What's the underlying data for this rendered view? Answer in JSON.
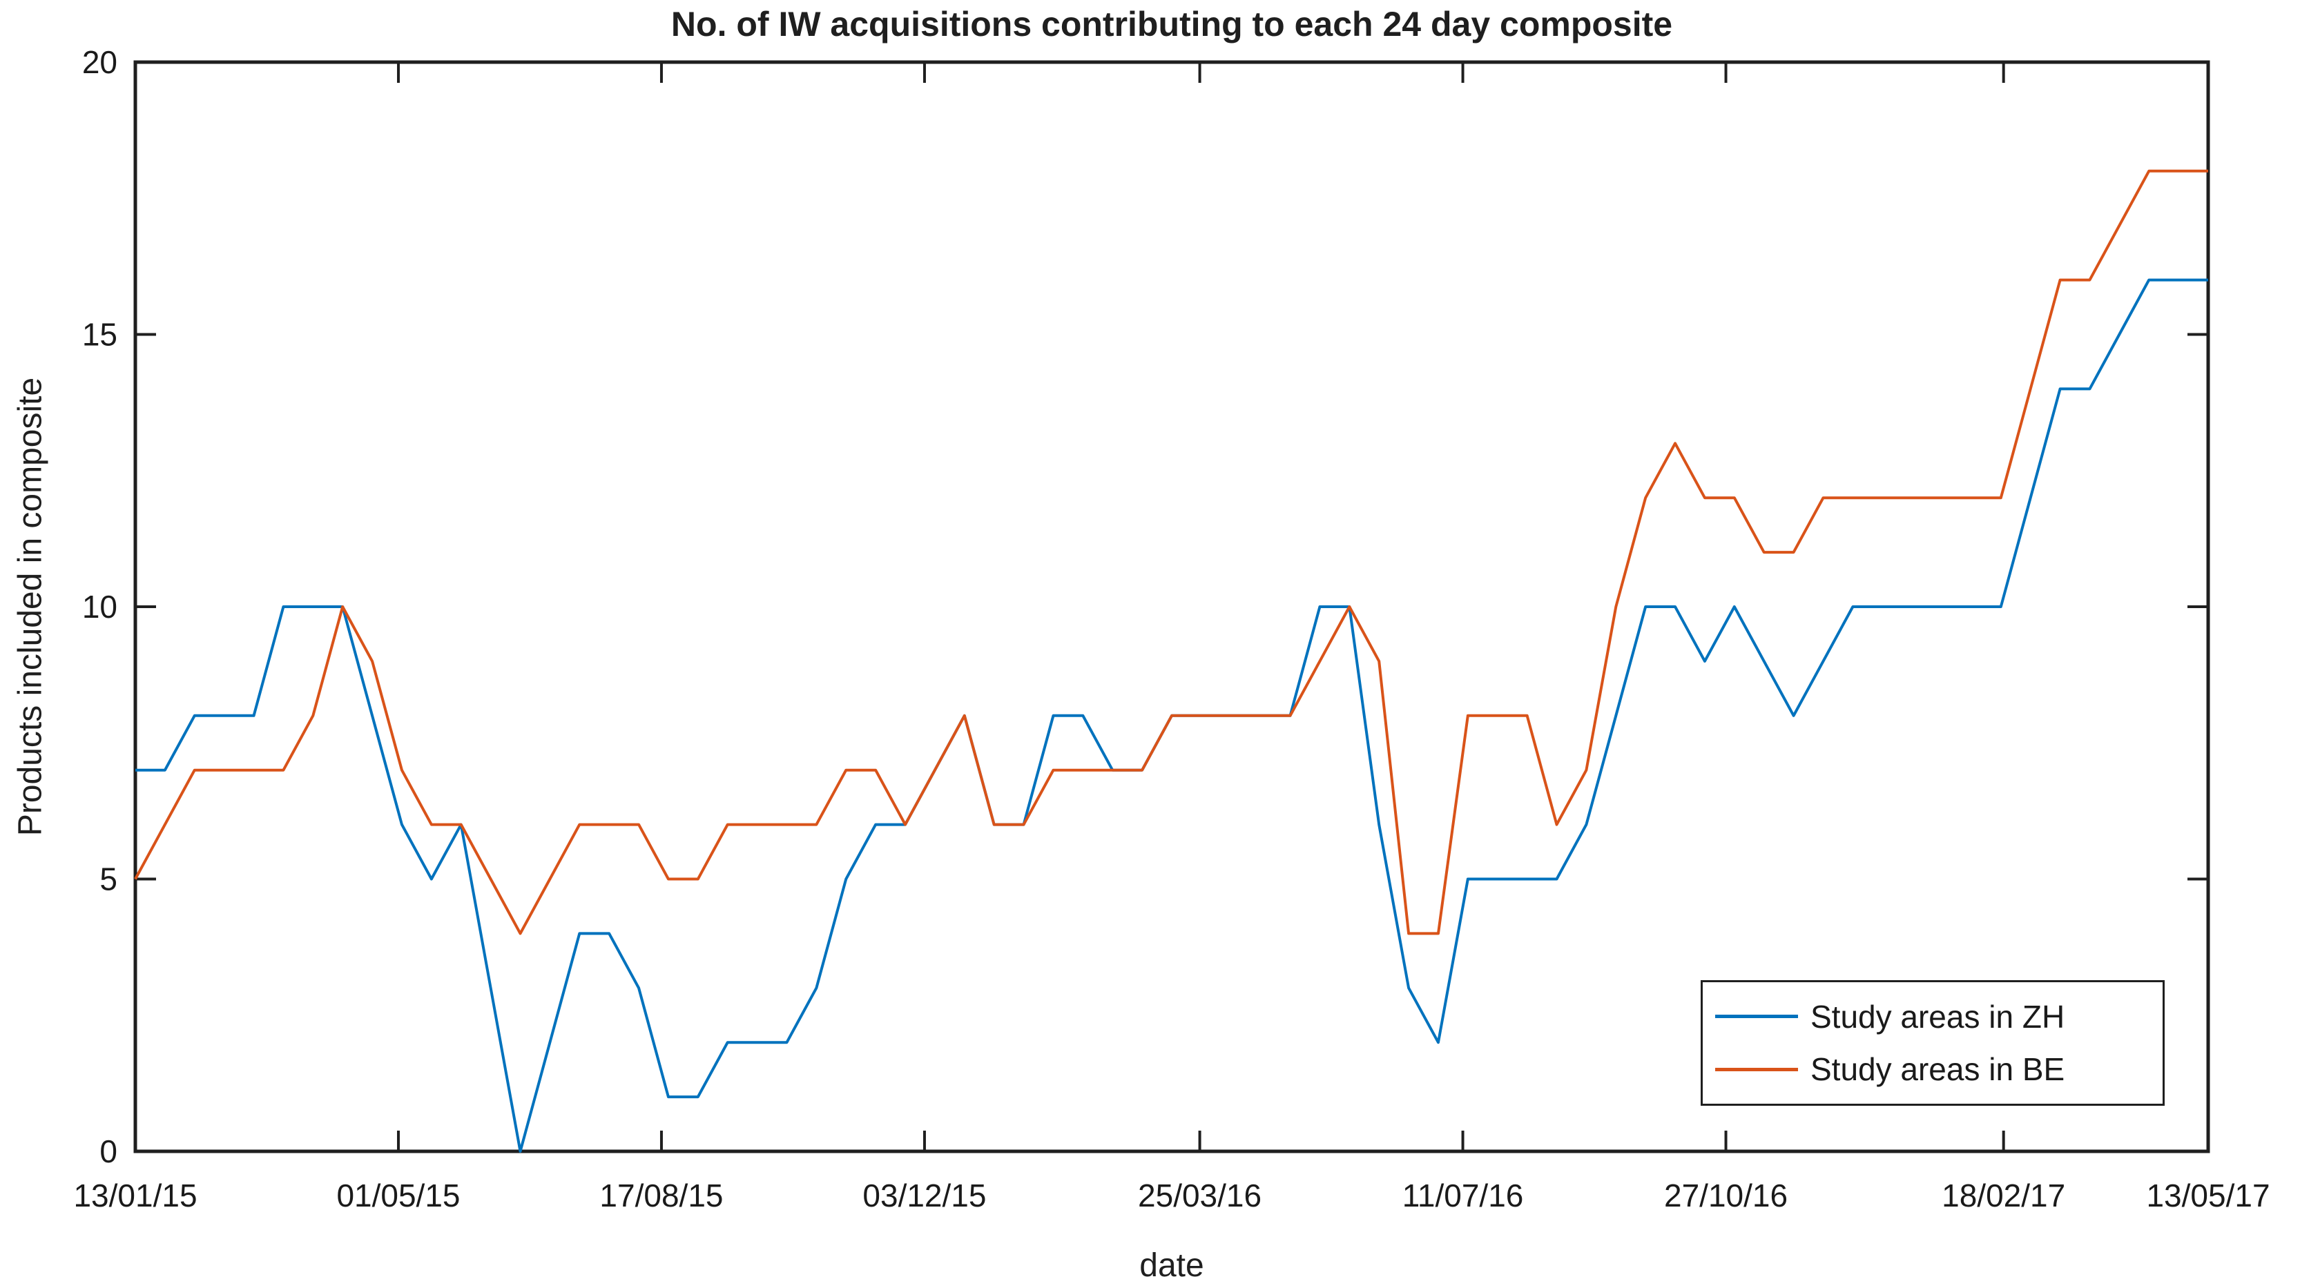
{
  "chart_data": {
    "type": "line",
    "title": "No. of IW acquisitions contributing to each 24 day composite",
    "xlabel": "date",
    "ylabel": "Products included in composite",
    "ylim": [
      0,
      20
    ],
    "y_ticks": [
      0,
      5,
      10,
      15,
      20
    ],
    "x_tick_labels": [
      "13/01/15",
      "01/05/15",
      "17/08/15",
      "03/12/15",
      "25/03/16",
      "11/07/16",
      "27/10/16",
      "18/02/17",
      "13/05/17"
    ],
    "x_tick_day_offsets": [
      0,
      108,
      216,
      324,
      437,
      545,
      653,
      767,
      851
    ],
    "x_total_days": 851,
    "point_interval_days": 12,
    "grid": false,
    "legend_position": "south-east",
    "background": "#FFFFFF",
    "axis_color": "#1F1F1F",
    "series": [
      {
        "name": "Study areas in ZH",
        "color": "#0072BD",
        "values": [
          7,
          7,
          8,
          8,
          8,
          10,
          10,
          10,
          8,
          6,
          5,
          6,
          3,
          0,
          2,
          4,
          4,
          3,
          1,
          1,
          2,
          2,
          2,
          3,
          5,
          6,
          6,
          7,
          8,
          6,
          6,
          8,
          8,
          7,
          7,
          8,
          8,
          8,
          8,
          8,
          10,
          10,
          6,
          3,
          2,
          5,
          5,
          5,
          5,
          6,
          8,
          10,
          10,
          9,
          10,
          9,
          8,
          9,
          10,
          10,
          10,
          10,
          10,
          10,
          12,
          14,
          14,
          15,
          16,
          16,
          16
        ]
      },
      {
        "name": "Study areas in BE",
        "color": "#D95319",
        "values": [
          5,
          6,
          7,
          7,
          7,
          7,
          8,
          10,
          9,
          7,
          6,
          6,
          5,
          4,
          5,
          6,
          6,
          6,
          5,
          5,
          6,
          6,
          6,
          6,
          7,
          7,
          6,
          7,
          8,
          6,
          6,
          7,
          7,
          7,
          7,
          8,
          8,
          8,
          8,
          8,
          9,
          10,
          9,
          4,
          4,
          8,
          8,
          8,
          6,
          7,
          10,
          12,
          13,
          12,
          12,
          11,
          11,
          12,
          12,
          12,
          12,
          12,
          12,
          12,
          14,
          16,
          16,
          17,
          18,
          18,
          18
        ]
      }
    ]
  }
}
